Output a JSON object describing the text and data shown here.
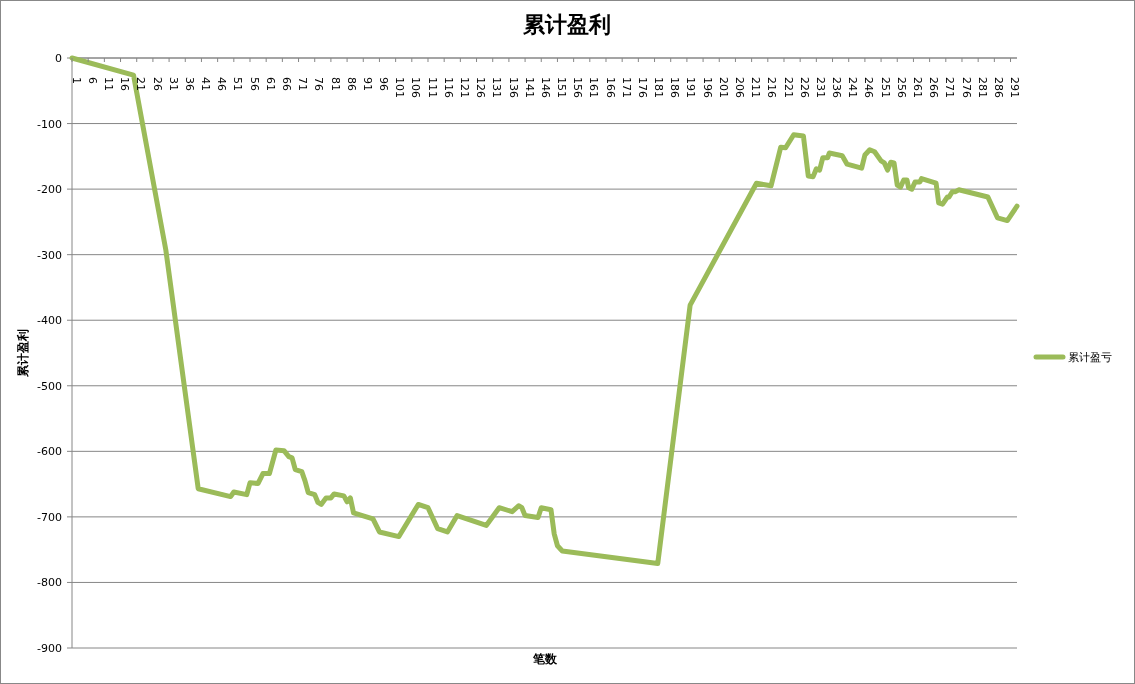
{
  "chart_data": {
    "type": "line",
    "title": "累计盈利",
    "xlabel": "笔数",
    "ylabel": "累计盈利",
    "x": [
      1,
      20,
      30,
      40,
      50,
      51,
      55,
      56,
      58.5,
      60,
      62,
      64,
      66.5,
      68,
      69,
      70,
      72,
      73,
      74,
      76,
      77,
      78,
      79.5,
      81,
      82,
      85,
      86,
      87,
      88,
      94,
      96,
      102,
      108,
      111,
      114,
      117,
      120,
      129,
      133,
      137,
      139,
      140,
      141,
      145,
      146,
      149,
      150,
      151,
      152.5,
      182,
      192,
      212.5,
      217,
      220,
      221.5,
      224,
      227,
      228.5,
      230,
      231,
      232,
      233,
      234.5,
      235,
      239,
      240.5,
      245,
      246,
      247.5,
      249,
      251,
      252,
      253,
      254,
      255,
      256,
      257,
      258,
      259,
      259.5,
      260.5,
      261.5,
      263,
      263.5,
      268,
      268.8,
      270,
      271.5,
      272,
      273,
      274,
      275,
      284,
      287,
      290,
      293
    ],
    "series": [
      {
        "name": "累计盈亏",
        "color": "#9bbb59",
        "values": [
          0,
          -26,
          -293,
          -657,
          -669,
          -662,
          -666,
          -648,
          -649,
          -634,
          -634,
          -598,
          -599,
          -608,
          -610,
          -628,
          -631,
          -645,
          -663,
          -666,
          -678,
          -681,
          -671,
          -671,
          -665,
          -668,
          -677,
          -671,
          -694,
          -703,
          -723,
          -730,
          -681,
          -686,
          -718,
          -723,
          -698,
          -713,
          -686,
          -692,
          -683,
          -686,
          -698,
          -701,
          -686,
          -689,
          -726,
          -744,
          -752,
          -771,
          -377,
          -191,
          -195,
          -136,
          -137,
          -117,
          -119,
          -180,
          -181,
          -169,
          -171,
          -152,
          -152,
          -145,
          -149,
          -162,
          -168,
          -148,
          -140,
          -143,
          -157,
          -160,
          -171,
          -159,
          -160,
          -194,
          -197,
          -186,
          -186,
          -198,
          -200,
          -189,
          -189,
          -184,
          -191,
          -221,
          -223,
          -212,
          -212,
          -204,
          -204,
          -201,
          -212,
          -244,
          -248,
          -226
        ]
      }
    ],
    "xlim": [
      1,
      293
    ],
    "xticks": [
      1,
      6,
      11,
      16,
      21,
      26,
      31,
      36,
      41,
      46,
      51,
      56,
      61,
      66,
      71,
      76,
      81,
      86,
      91,
      96,
      101,
      106,
      111,
      116,
      121,
      126,
      131,
      136,
      141,
      146,
      151,
      156,
      161,
      166,
      171,
      176,
      181,
      186,
      191,
      196,
      201,
      206,
      211,
      216,
      221,
      226,
      231,
      236,
      241,
      246,
      251,
      256,
      261,
      266,
      271,
      276,
      281,
      286,
      291
    ],
    "ylim": [
      -900,
      0
    ],
    "yticks": [
      0,
      -100,
      -200,
      -300,
      -400,
      -500,
      -600,
      -700,
      -800,
      -900
    ],
    "grid": "y",
    "legend": "right"
  }
}
